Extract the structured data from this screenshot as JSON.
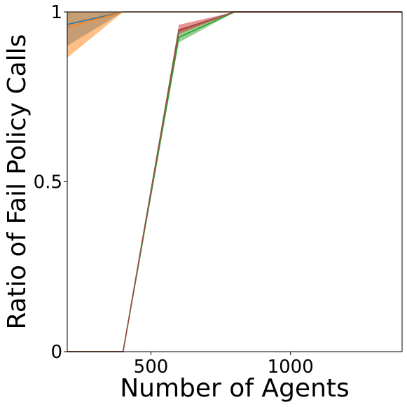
{
  "chart_data": {
    "type": "line",
    "xlabel": "Number of Agents",
    "ylabel": "Ratio of Fail Policy Calls",
    "xlim": [
      200,
      1400
    ],
    "ylim": [
      0,
      1
    ],
    "xticks": [
      500,
      1000
    ],
    "xtick_labels": [
      "500",
      "1000"
    ],
    "yticks": [
      0,
      0.5,
      1
    ],
    "ytick_labels": [
      "0",
      "0.5",
      "1"
    ],
    "grid": false,
    "legend": "none",
    "x": [
      200,
      400,
      600,
      800,
      1000,
      1200,
      1400
    ],
    "series": [
      {
        "color": "#1f77b4",
        "band_color": "#1f77b4",
        "values": [
          0.963,
          1,
          1,
          1,
          1,
          1,
          1
        ],
        "lower": [
          0.9,
          1,
          1,
          1,
          1,
          1,
          1
        ],
        "upper": [
          1,
          1,
          1,
          1,
          1,
          1,
          1
        ]
      },
      {
        "color": "#ff7f0e",
        "band_color": "#ff7f0e",
        "values": [
          0.955,
          1,
          1,
          1,
          1,
          1,
          1
        ],
        "lower": [
          0.865,
          1,
          1,
          1,
          1,
          1,
          1
        ],
        "upper": [
          1,
          1,
          1,
          1,
          1,
          1,
          1
        ]
      },
      {
        "color": "#2ca02c",
        "band_color": "#2ca02c",
        "values": [
          0,
          0,
          0.925,
          1,
          1,
          1,
          1
        ],
        "lower": [
          0,
          0,
          0.91,
          1,
          1,
          1,
          1
        ],
        "upper": [
          0,
          0,
          0.945,
          1,
          1,
          1,
          1
        ]
      },
      {
        "color": "#d62728",
        "band_color": "#d62728",
        "values": [
          0,
          0,
          0.945,
          1,
          1,
          1,
          1
        ],
        "lower": [
          0,
          0,
          0.935,
          1,
          1,
          1,
          1
        ],
        "upper": [
          0,
          0,
          0.962,
          1,
          1,
          1,
          1
        ]
      },
      {
        "color": "#8c564b",
        "band_color": "#8c564b",
        "values": [
          0,
          0,
          0.947,
          1,
          1,
          1,
          1
        ],
        "lower": [
          0,
          0,
          0.947,
          1,
          1,
          1,
          1
        ],
        "upper": [
          0,
          0,
          0.947,
          1,
          1,
          1,
          1
        ]
      }
    ]
  }
}
